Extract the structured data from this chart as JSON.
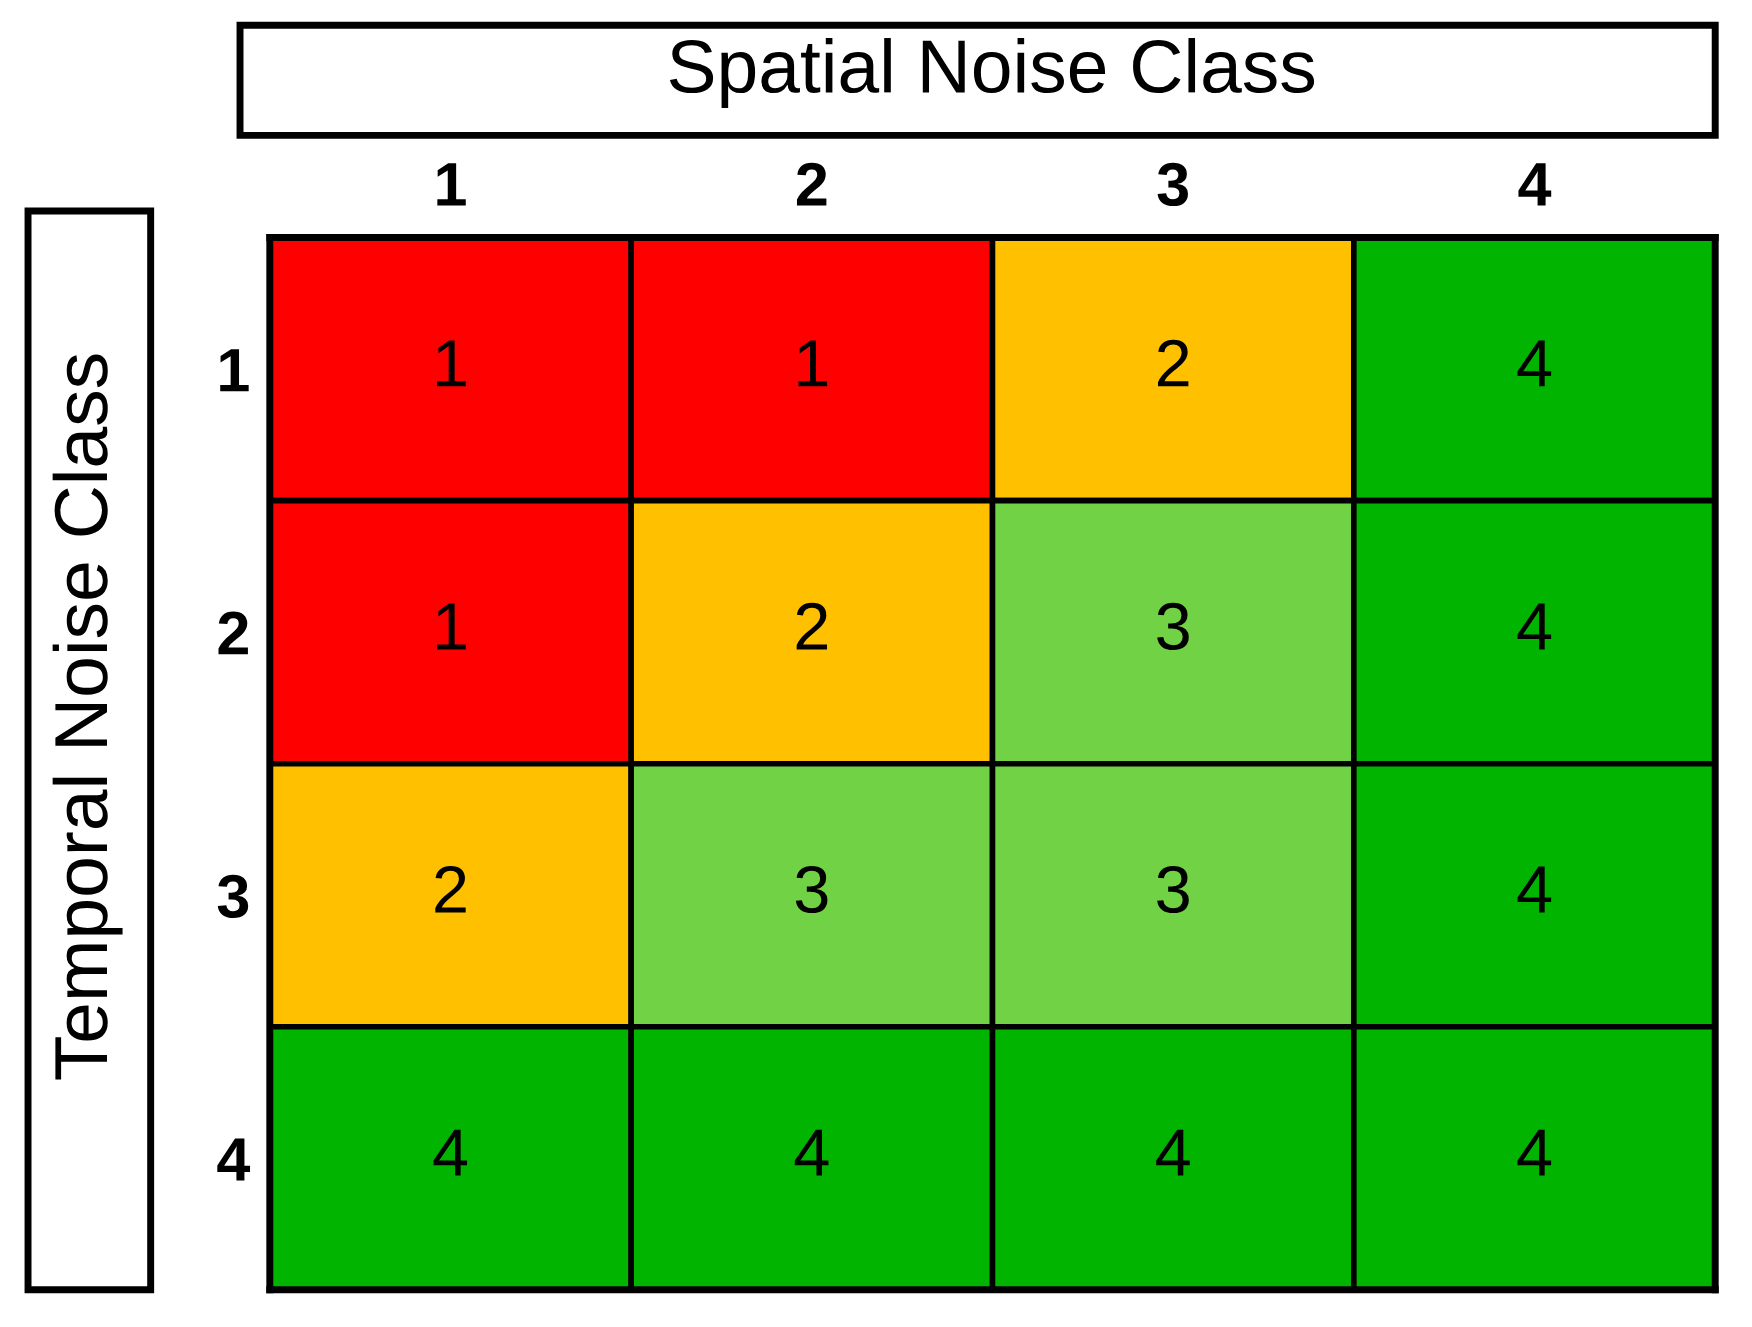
{
  "chart_data": {
    "type": "heatmap",
    "xlabel": "Spatial Noise Class",
    "ylabel": "Temporal Noise Class",
    "categories": [
      "1",
      "2",
      "3",
      "4"
    ],
    "y_categories": [
      "1",
      "2",
      "3",
      "4"
    ],
    "cells": [
      [
        1,
        1,
        2,
        4
      ],
      [
        1,
        2,
        3,
        4
      ],
      [
        2,
        3,
        3,
        4
      ],
      [
        4,
        4,
        4,
        4
      ]
    ],
    "colors": [
      "#ff0000",
      "#ffc000",
      "#70d244",
      "#00b400"
    ],
    "data_labels": true
  }
}
